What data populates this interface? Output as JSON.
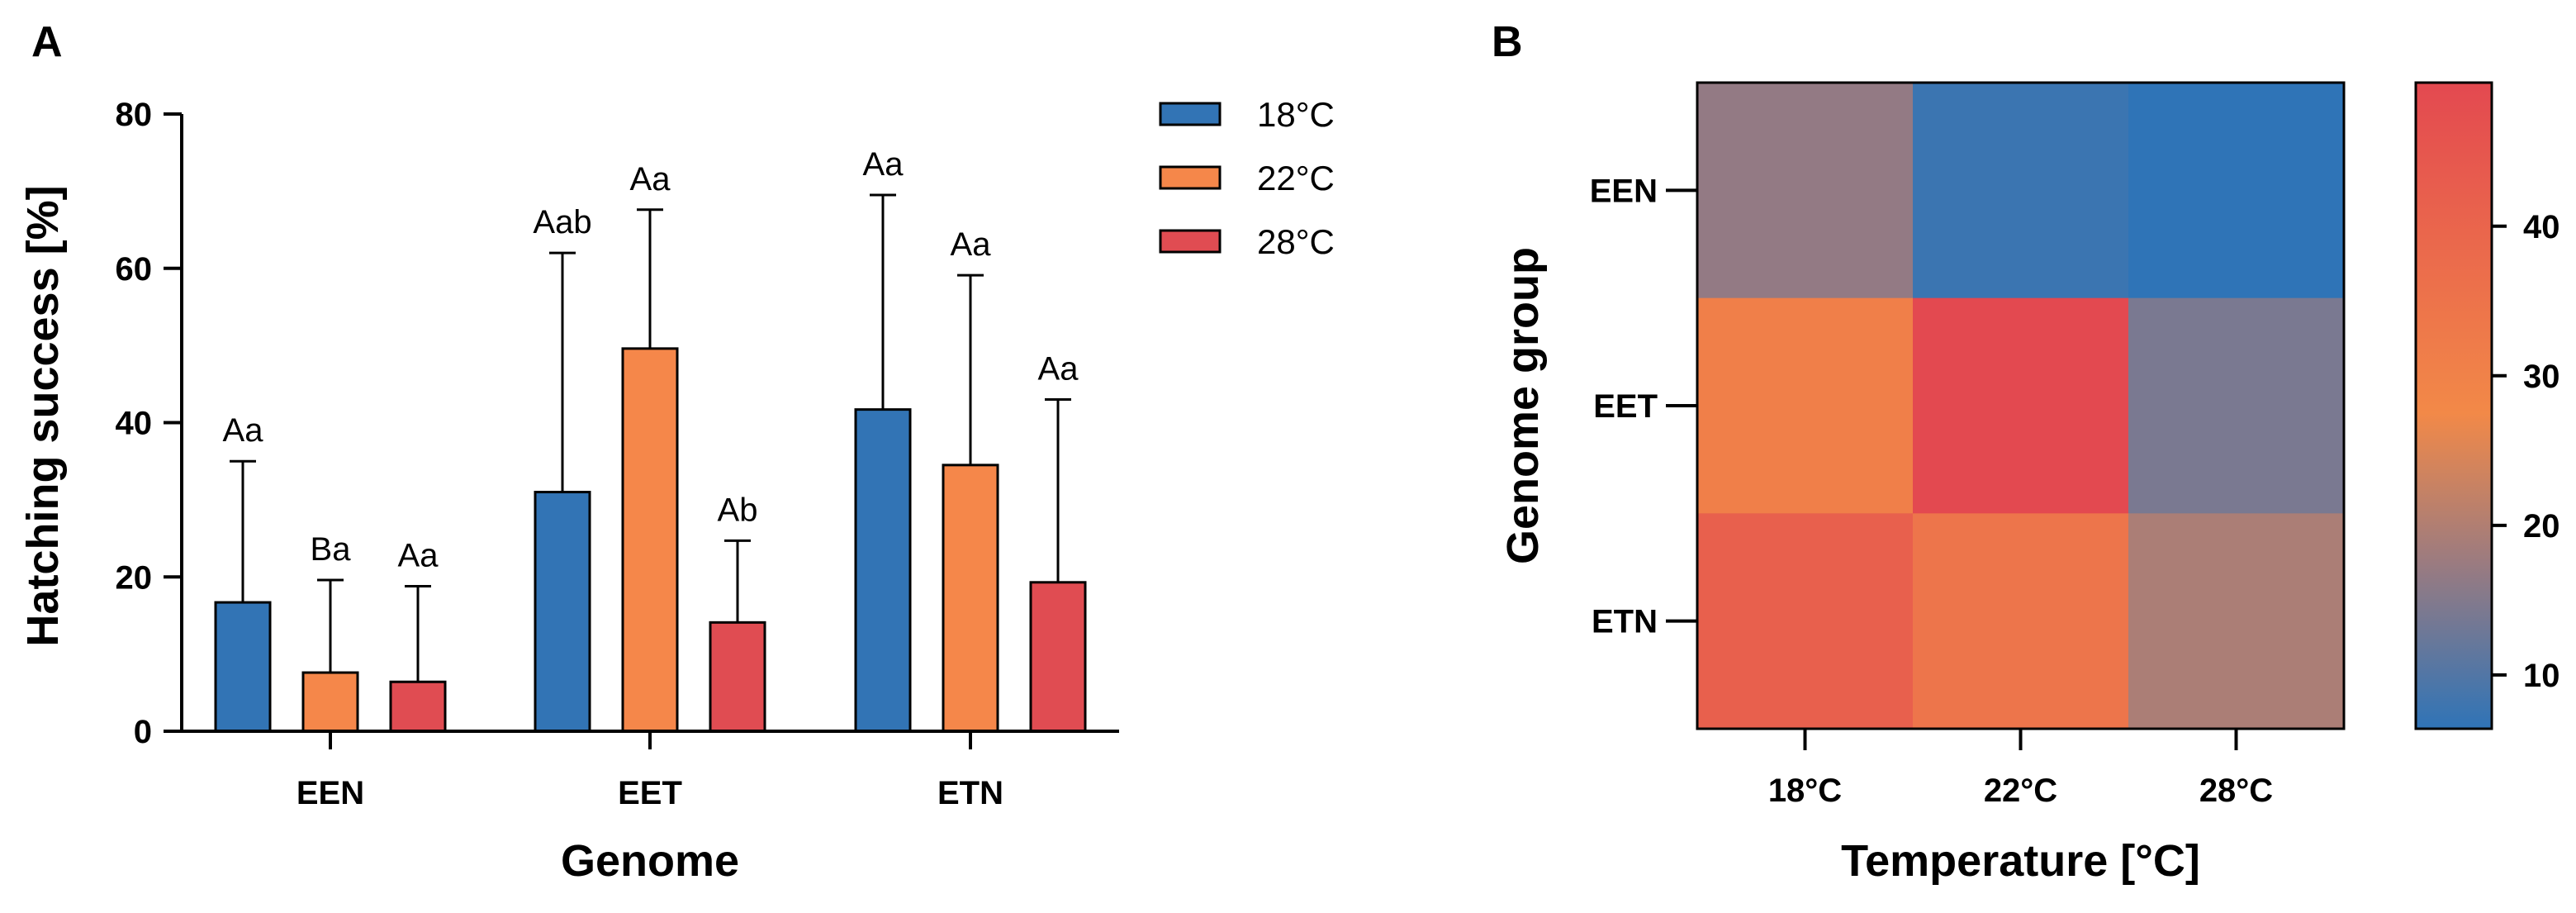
{
  "panels": {
    "a": "A",
    "b": "B"
  },
  "chart_data": [
    {
      "type": "bar",
      "panel": "A",
      "title": "",
      "xlabel": "Genome",
      "ylabel": "Hatching success [%]",
      "categories": [
        "EEN",
        "EET",
        "ETN"
      ],
      "ylim": [
        0,
        80
      ],
      "yticks": [
        0,
        20,
        40,
        60,
        80
      ],
      "legend_position": "top-right",
      "series": [
        {
          "name": "18°C",
          "color": "#3274b5",
          "values": [
            16.7,
            31.0,
            41.7
          ],
          "errors": [
            18.3,
            31.0,
            27.8
          ],
          "labels": [
            "Aa",
            "Aab",
            "Aa"
          ]
        },
        {
          "name": "22°C",
          "color": "#f5874a",
          "values": [
            7.6,
            49.6,
            34.5
          ],
          "errors": [
            12.0,
            18.0,
            24.6
          ],
          "labels": [
            "Ba",
            "Aa",
            "Aa"
          ]
        },
        {
          "name": "28°C",
          "color": "#e04c52",
          "values": [
            6.4,
            14.1,
            19.3
          ],
          "errors": [
            12.4,
            10.6,
            23.7
          ],
          "labels": [
            "Aa",
            "Ab",
            "Aa"
          ]
        }
      ]
    },
    {
      "type": "heatmap",
      "panel": "B",
      "title": "",
      "xlabel": "Temperature [°C]",
      "ylabel": "Genome group",
      "x_categories": [
        "18°C",
        "22°C",
        "28°C"
      ],
      "y_categories": [
        "EEN",
        "EET",
        "ETN"
      ],
      "values": [
        [
          16.7,
          7.6,
          6.4
        ],
        [
          31.0,
          49.6,
          14.1
        ],
        [
          41.7,
          34.5,
          19.3
        ]
      ],
      "color_range": [
        6.4,
        49.6
      ],
      "colorbar_ticks": [
        10,
        20,
        30,
        40
      ],
      "colormap": [
        {
          "value": 6.4,
          "color": "#2f74b7"
        },
        {
          "value": 17.5,
          "color": "#9b7b80"
        },
        {
          "value": 27.5,
          "color": "#f28948"
        },
        {
          "value": 49.6,
          "color": "#e34950"
        }
      ]
    }
  ]
}
